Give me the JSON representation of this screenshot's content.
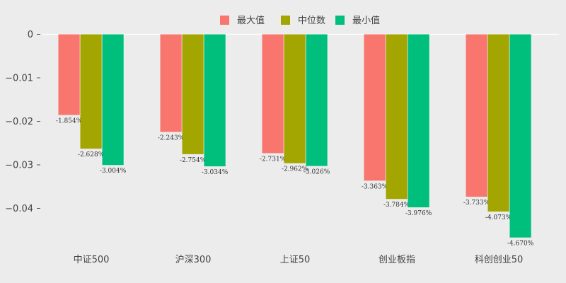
{
  "chart_data": {
    "type": "bar",
    "title": "",
    "xlabel": "",
    "ylabel": "",
    "categories": [
      "中证500",
      "沪深300",
      "上证50",
      "创业板指",
      "科创创业50"
    ],
    "series": [
      {
        "name": "最大值",
        "color": "#f8766d",
        "values": [
          -0.01854,
          -0.02243,
          -0.02731,
          -0.03363,
          -0.03733
        ],
        "labels": [
          "-1.854%",
          "-2.243%",
          "-2.731%",
          "-3.363%",
          "-3.733%"
        ]
      },
      {
        "name": "中位数",
        "color": "#a3a500",
        "values": [
          -0.02628,
          -0.02754,
          -0.02962,
          -0.03784,
          -0.04073
        ],
        "labels": [
          "-2.628%",
          "-2.754%",
          "-2.962%",
          "-3.784%",
          "-4.073%"
        ]
      },
      {
        "name": "最小值",
        "color": "#00bf7d",
        "values": [
          -0.03004,
          -0.03034,
          -0.03026,
          -0.03976,
          -0.0467
        ],
        "labels": [
          "-3.004%",
          "-3.034%",
          "-3.026%",
          "-3.976%",
          "-4.670%"
        ]
      }
    ],
    "yticks": [
      0,
      -0.01,
      -0.02,
      -0.03,
      -0.04
    ],
    "ytick_labels": [
      "0",
      "−0.01",
      "−0.02",
      "−0.03",
      "−0.04"
    ],
    "ylim": [
      -0.04895,
      0
    ],
    "legend_position": "top-center",
    "grid": false,
    "background": "#ececec"
  }
}
